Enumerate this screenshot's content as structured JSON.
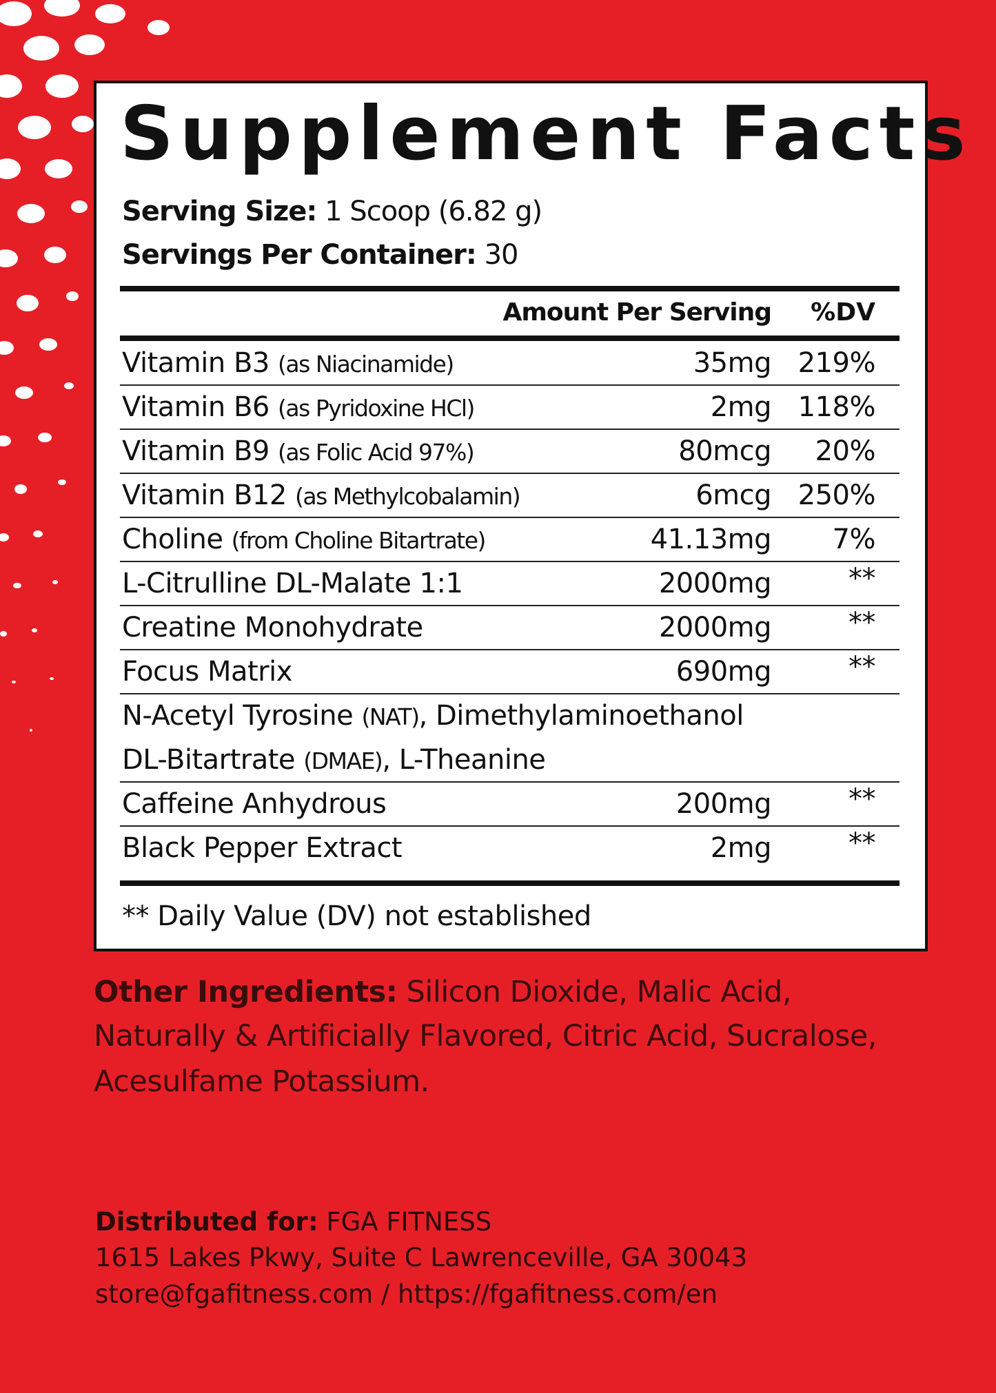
{
  "title": "Supplement Facts",
  "serving_size": {
    "label": "Serving Size:",
    "value": "1 Scoop (6.82 g)"
  },
  "servings_per_container": {
    "label": "Servings Per Container:",
    "value": "30"
  },
  "header": {
    "amount": "Amount Per Serving",
    "dv": "%DV"
  },
  "rows": [
    {
      "name": "Vitamin B3",
      "note": "(as Niacinamide)",
      "amount": "35mg",
      "dv": "219%"
    },
    {
      "name": "Vitamin B6",
      "note": "(as Pyridoxine HCl)",
      "amount": "2mg",
      "dv": "118%"
    },
    {
      "name": "Vitamin B9",
      "note": "(as Folic Acid 97%)",
      "amount": "80mcg",
      "dv": "20%"
    },
    {
      "name": "Vitamin B12",
      "note": "(as Methylcobalamin)",
      "amount": "6mcg",
      "dv": "250%"
    },
    {
      "name": "Choline",
      "note": "(from Choline Bitartrate)",
      "amount": "41.13mg",
      "dv": "7%"
    },
    {
      "name": "L-Citrulline DL-Malate 1:1",
      "amount": "2000mg",
      "dv": "**"
    },
    {
      "name": "Creatine Monohydrate",
      "amount": "2000mg",
      "dv": "**"
    },
    {
      "name": "Focus Matrix",
      "amount": "690mg",
      "dv": "**"
    },
    {
      "lines": [
        [
          "N-Acetyl Tyrosine",
          "(NAT)",
          ", Dimethylaminoethanol"
        ],
        [
          "DL-Bitartrate",
          "(DMAE)",
          ", L-Theanine"
        ]
      ]
    },
    {
      "name": "Caffeine Anhydrous",
      "amount": "200mg",
      "dv": "**"
    },
    {
      "name": "Black Pepper Extract",
      "amount": "2mg",
      "dv": "**"
    }
  ],
  "footnote": "** Daily Value (DV) not established",
  "other_ingredients": {
    "label": "Other Ingredients:",
    "lines": [
      "Silicon Dioxide, Malic Acid,",
      "Naturally & Artificially Flavored, Citric Acid, Sucralose,",
      "Acesulfame Potassium."
    ]
  },
  "distributor": {
    "label": "Distributed for:",
    "name": "FGA FITNESS",
    "address": "1615 Lakes Pkwy, Suite C Lawrenceville, GA 30043",
    "contact": "store@fgafitness.com / https://fgafitness.com/en"
  }
}
